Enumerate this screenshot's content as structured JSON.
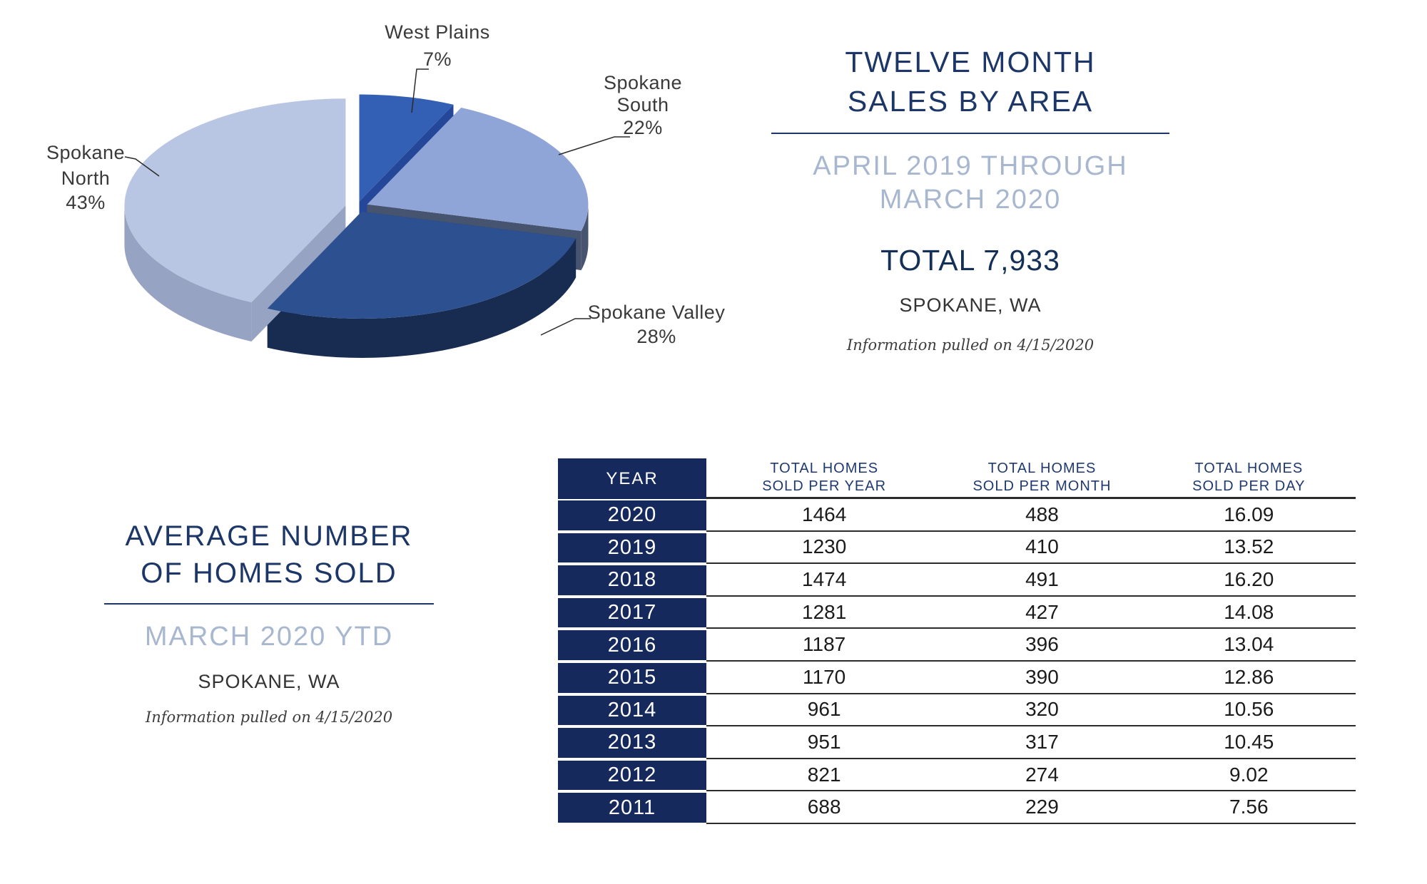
{
  "pie_section": {
    "title_line1": "TWELVE MONTH",
    "title_line2": "SALES BY AREA",
    "subtitle_line1": "APRIL 2019 THROUGH",
    "subtitle_line2": "MARCH 2020",
    "total": "TOTAL 7,933",
    "location": "SPOKANE, WA",
    "info_note": "Information pulled on 4/15/2020"
  },
  "avg_section": {
    "title_line1": "AVERAGE NUMBER",
    "title_line2": "OF HOMES SOLD",
    "subtitle": "MARCH 2020 YTD",
    "location": "SPOKANE, WA",
    "info_note": "Information pulled on 4/15/2020"
  },
  "pie_labels": [
    {
      "lines": [
        "West Plains",
        "7%"
      ]
    },
    {
      "lines": [
        "Spokane",
        "South",
        "22%"
      ]
    },
    {
      "lines": [
        "Spokane Valley",
        "28%"
      ]
    },
    {
      "lines": [
        "Spokane",
        "North",
        "43%"
      ]
    }
  ],
  "table": {
    "year_header": "YEAR",
    "columns": [
      {
        "line1": "TOTAL HOMES",
        "line2": "SOLD PER YEAR"
      },
      {
        "line1": "TOTAL HOMES",
        "line2": "SOLD PER MONTH"
      },
      {
        "line1": "TOTAL HOMES",
        "line2": "SOLD PER DAY"
      }
    ],
    "rows": [
      {
        "year": "2020",
        "per_year": "1464",
        "per_month": "488",
        "per_day": "16.09"
      },
      {
        "year": "2019",
        "per_year": "1230",
        "per_month": "410",
        "per_day": "13.52"
      },
      {
        "year": "2018",
        "per_year": "1474",
        "per_month": "491",
        "per_day": "16.20"
      },
      {
        "year": "2017",
        "per_year": "1281",
        "per_month": "427",
        "per_day": "14.08"
      },
      {
        "year": "2016",
        "per_year": "1187",
        "per_month": "396",
        "per_day": "13.04"
      },
      {
        "year": "2015",
        "per_year": "1170",
        "per_month": "390",
        "per_day": "12.86"
      },
      {
        "year": "2014",
        "per_year": "961",
        "per_month": "320",
        "per_day": "10.56"
      },
      {
        "year": "2013",
        "per_year": "951",
        "per_month": "317",
        "per_day": "10.45"
      },
      {
        "year": "2012",
        "per_year": "821",
        "per_month": "274",
        "per_day": "9.02"
      },
      {
        "year": "2011",
        "per_year": "688",
        "per_month": "229",
        "per_day": "7.56"
      }
    ]
  },
  "colors": {
    "heading_navy": "#1c3767",
    "subtitle_blue_gray": "#a8b7d0",
    "table_year_cell": "#15295c",
    "table_header_text": "#1f3a6e",
    "separator": "#2b2b2b"
  },
  "chart_data": [
    {
      "type": "pie",
      "title": "Twelve Month Sales by Area",
      "subtitle": "April 2019 through March 2020",
      "location": "Spokane, WA",
      "total": 7933,
      "labels": [
        "West Plains",
        "Spokane South",
        "Spokane Valley",
        "Spokane North"
      ],
      "values": [
        7,
        22,
        28,
        43
      ],
      "unit": "percent",
      "style": "3d-exploded",
      "start_angle_deg": 0,
      "direction": "clockwise",
      "colors": [
        "#335fb4",
        "#8fa5d8",
        "#2d5190",
        "#b8c5e3"
      ],
      "side_colors": [
        "#24479a",
        "#47546f",
        "#182c52",
        "#97a3c2"
      ],
      "legend": "none"
    },
    {
      "type": "table",
      "title": "Average Number of Homes Sold — March 2020 YTD, Spokane, WA",
      "columns": [
        "YEAR",
        "TOTAL HOMES SOLD PER YEAR",
        "TOTAL HOMES SOLD PER MONTH",
        "TOTAL HOMES SOLD PER DAY"
      ],
      "rows": [
        [
          2020,
          1464,
          488,
          16.09
        ],
        [
          2019,
          1230,
          410,
          13.52
        ],
        [
          2018,
          1474,
          491,
          16.2
        ],
        [
          2017,
          1281,
          427,
          14.08
        ],
        [
          2016,
          1187,
          396,
          13.04
        ],
        [
          2015,
          1170,
          390,
          12.86
        ],
        [
          2014,
          961,
          320,
          10.56
        ],
        [
          2013,
          951,
          317,
          10.45
        ],
        [
          2012,
          821,
          274,
          9.02
        ],
        [
          2011,
          688,
          229,
          7.56
        ]
      ]
    }
  ]
}
